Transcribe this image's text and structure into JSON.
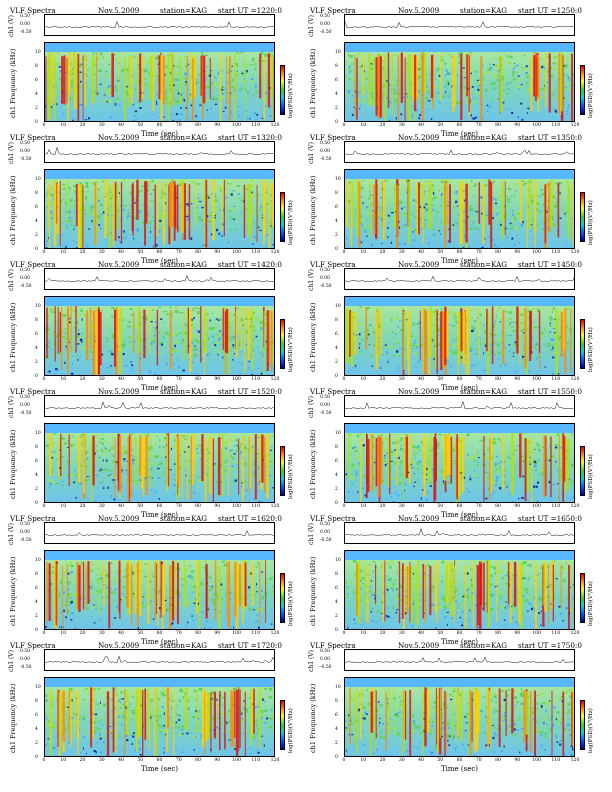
{
  "labels": {
    "title": "VLF Spectra",
    "date": "Nov.5.2009",
    "station": "station=KAG",
    "ch_axis": "ch1 (V)",
    "ylabel": "ch1\nFrequency (kHz)",
    "xlabel": "Time (sec)",
    "cbar_label": "log(PSD)(V²/Hz)"
  },
  "colors": {
    "high": "#e00000",
    "mid_high": "#ffa000",
    "mid": "#ffff00",
    "mid_low": "#33cc33",
    "low": "#00d6d6",
    "lowest": "#0060ff",
    "bottom": "#000090"
  },
  "chart_data": [
    {
      "type": "heatmap",
      "start": "start UT =1220:0",
      "xlim": [
        0,
        120
      ],
      "ylim": [
        0,
        10
      ],
      "x_ticks": [
        "0",
        "10",
        "20",
        "30",
        "40",
        "50",
        "60",
        "70",
        "80",
        "90",
        "100",
        "110",
        "120"
      ],
      "y_ticks": [
        "0",
        "2",
        "4",
        "6",
        "8",
        "10"
      ],
      "line_ticks": [
        "0.50",
        "0.00",
        "-0.50"
      ]
    },
    {
      "type": "heatmap",
      "start": "start UT =1250:0",
      "xlim": [
        0,
        120
      ],
      "ylim": [
        0,
        10
      ],
      "x_ticks": [
        "0",
        "10",
        "20",
        "30",
        "40",
        "50",
        "60",
        "70",
        "80",
        "90",
        "100",
        "110",
        "120"
      ],
      "y_ticks": [
        "0",
        "2",
        "4",
        "6",
        "8",
        "10"
      ],
      "line_ticks": [
        "0.50",
        "0.00",
        "-0.50"
      ]
    },
    {
      "type": "heatmap",
      "start": "start UT =1320:0",
      "xlim": [
        0,
        120
      ],
      "ylim": [
        0,
        10
      ],
      "x_ticks": [
        "0",
        "10",
        "20",
        "30",
        "40",
        "50",
        "60",
        "70",
        "80",
        "90",
        "100",
        "110",
        "120"
      ],
      "y_ticks": [
        "0",
        "2",
        "4",
        "6",
        "8",
        "10"
      ],
      "line_ticks": [
        "0.50",
        "0.00",
        "-0.50"
      ]
    },
    {
      "type": "heatmap",
      "start": "start UT =1350:0",
      "xlim": [
        0,
        120
      ],
      "ylim": [
        0,
        10
      ],
      "x_ticks": [
        "0",
        "10",
        "20",
        "30",
        "40",
        "50",
        "60",
        "70",
        "80",
        "90",
        "100",
        "110",
        "120"
      ],
      "y_ticks": [
        "0",
        "2",
        "4",
        "6",
        "8",
        "10"
      ],
      "line_ticks": [
        "0.50",
        "0.00",
        "-0.50"
      ]
    },
    {
      "type": "heatmap",
      "start": "start UT =1420:0",
      "xlim": [
        0,
        120
      ],
      "ylim": [
        0,
        10
      ],
      "x_ticks": [
        "0",
        "10",
        "20",
        "30",
        "40",
        "50",
        "60",
        "70",
        "80",
        "90",
        "100",
        "110",
        "120"
      ],
      "y_ticks": [
        "0",
        "2",
        "4",
        "6",
        "8",
        "10"
      ],
      "line_ticks": [
        "0.50",
        "0.00",
        "-0.50"
      ]
    },
    {
      "type": "heatmap",
      "start": "start UT =1450:0",
      "xlim": [
        0,
        120
      ],
      "ylim": [
        0,
        10
      ],
      "x_ticks": [
        "0",
        "10",
        "20",
        "30",
        "40",
        "50",
        "60",
        "70",
        "80",
        "90",
        "100",
        "110",
        "120"
      ],
      "y_ticks": [
        "0",
        "2",
        "4",
        "6",
        "8",
        "10"
      ],
      "line_ticks": [
        "0.50",
        "0.00",
        "-0.50"
      ]
    },
    {
      "type": "heatmap",
      "start": "start UT =1520:0",
      "xlim": [
        0,
        120
      ],
      "ylim": [
        0,
        10
      ],
      "x_ticks": [
        "0",
        "10",
        "20",
        "30",
        "40",
        "50",
        "60",
        "70",
        "80",
        "90",
        "100",
        "110",
        "120"
      ],
      "y_ticks": [
        "0",
        "2",
        "4",
        "6",
        "8",
        "10"
      ],
      "line_ticks": [
        "0.50",
        "0.00",
        "-0.50"
      ]
    },
    {
      "type": "heatmap",
      "start": "start UT =1550:0",
      "xlim": [
        0,
        120
      ],
      "ylim": [
        0,
        10
      ],
      "x_ticks": [
        "0",
        "10",
        "20",
        "30",
        "40",
        "50",
        "60",
        "70",
        "80",
        "90",
        "100",
        "110",
        "120"
      ],
      "y_ticks": [
        "0",
        "2",
        "4",
        "6",
        "8",
        "10"
      ],
      "line_ticks": [
        "0.50",
        "0.00",
        "-0.50"
      ]
    },
    {
      "type": "heatmap",
      "start": "start UT =1620:0",
      "xlim": [
        0,
        120
      ],
      "ylim": [
        0,
        10
      ],
      "x_ticks": [
        "0",
        "10",
        "20",
        "30",
        "40",
        "50",
        "60",
        "70",
        "80",
        "90",
        "100",
        "110",
        "120"
      ],
      "y_ticks": [
        "0",
        "2",
        "4",
        "6",
        "8",
        "10"
      ],
      "line_ticks": [
        "0.50",
        "0.00",
        "-0.50"
      ]
    },
    {
      "type": "heatmap",
      "start": "start UT =1650:0",
      "xlim": [
        0,
        120
      ],
      "ylim": [
        0,
        10
      ],
      "x_ticks": [
        "0",
        "10",
        "20",
        "30",
        "40",
        "50",
        "60",
        "70",
        "80",
        "90",
        "100",
        "110",
        "120"
      ],
      "y_ticks": [
        "0",
        "2",
        "4",
        "6",
        "8",
        "10"
      ],
      "line_ticks": [
        "0.50",
        "0.00",
        "-0.50"
      ]
    },
    {
      "type": "heatmap",
      "start": "start UT =1720:0",
      "xlim": [
        0,
        120
      ],
      "ylim": [
        0,
        10
      ],
      "x_ticks": [
        "0",
        "10",
        "20",
        "30",
        "40",
        "50",
        "60",
        "70",
        "80",
        "90",
        "100",
        "110",
        "120"
      ],
      "y_ticks": [
        "0",
        "2",
        "4",
        "6",
        "8",
        "10"
      ],
      "line_ticks": [
        "0.50",
        "0.00",
        "-0.50"
      ]
    },
    {
      "type": "heatmap",
      "start": "start UT =1750:0",
      "xlim": [
        0,
        120
      ],
      "ylim": [
        0,
        10
      ],
      "x_ticks": [
        "0",
        "10",
        "20",
        "30",
        "40",
        "50",
        "60",
        "70",
        "80",
        "90",
        "100",
        "110",
        "120"
      ],
      "y_ticks": [
        "0",
        "2",
        "4",
        "6",
        "8",
        "10"
      ],
      "line_ticks": [
        "0.50",
        "0.00",
        "-0.50"
      ]
    }
  ]
}
